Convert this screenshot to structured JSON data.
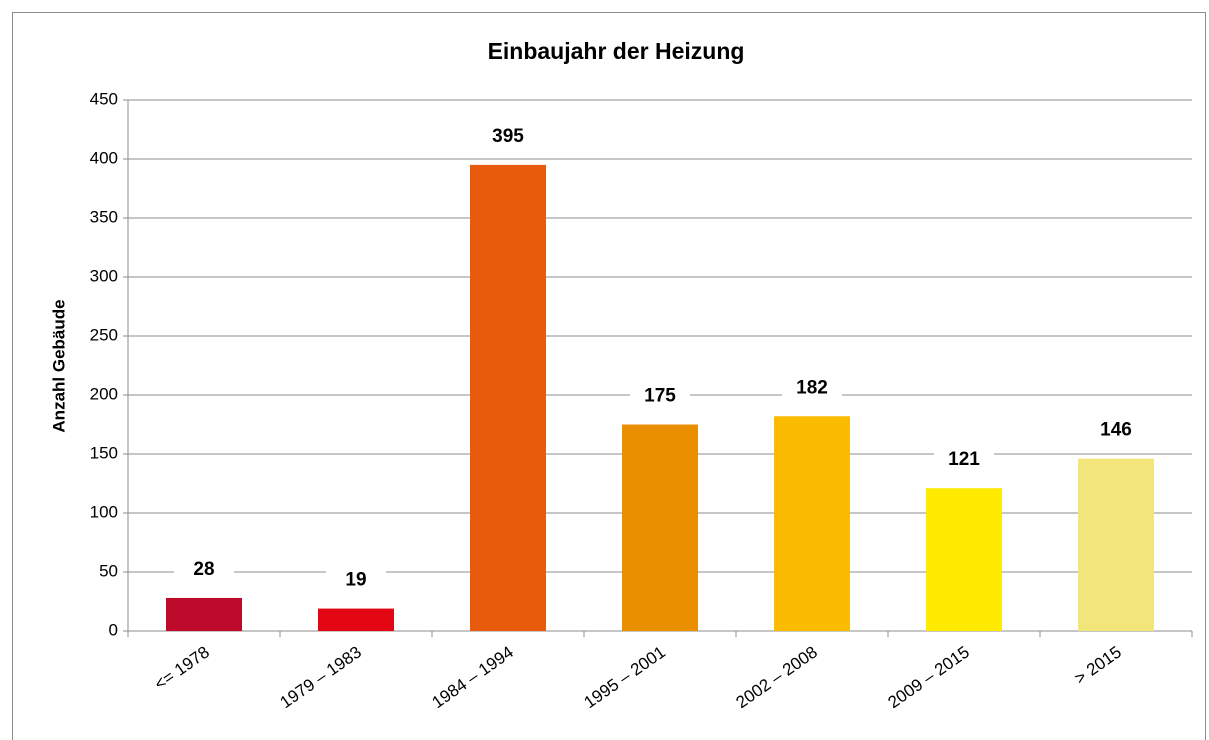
{
  "chart_data": {
    "type": "bar",
    "title": "Einbaujahr der Heizung",
    "y_label": "Anzahl Gebäude",
    "categories": [
      "<= 1978",
      "1979 – 1983",
      "1984 – 1994",
      "1995 – 2001",
      "2002 – 2008",
      "2009 – 2015",
      "> 2015"
    ],
    "values": [
      28,
      19,
      395,
      175,
      182,
      121,
      146
    ],
    "colors": [
      "#be0a2a",
      "#e30613",
      "#e85a0c",
      "#ea8f00",
      "#fbbb00",
      "#ffea00",
      "#f2e67a"
    ],
    "ylim": [
      0,
      450
    ],
    "yticks": [
      0,
      50,
      100,
      150,
      200,
      250,
      300,
      350,
      400,
      450
    ],
    "grid": true
  }
}
